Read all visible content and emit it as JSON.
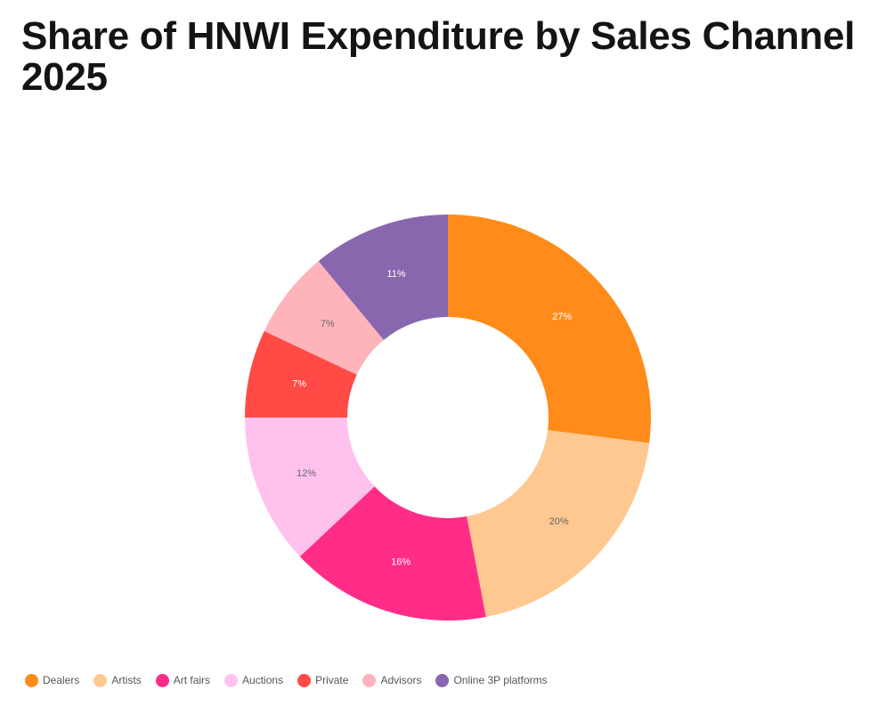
{
  "title": "Share of HNWI Expenditure by Sales Channel 2025",
  "chart_data": {
    "type": "pie",
    "title": "Share of HNWI Expenditure by Sales Channel 2025",
    "donut": true,
    "legend_position": "bottom-left",
    "categories": [
      "Dealers",
      "Artists",
      "Art fairs",
      "Auctions",
      "Private",
      "Advisors",
      "Online 3P platforms"
    ],
    "values": [
      27,
      20,
      16,
      12,
      7,
      7,
      11
    ],
    "labels": [
      "27%",
      "20%",
      "16%",
      "12%",
      "7%",
      "7%",
      "11%"
    ],
    "colors": [
      "#ff8c1a",
      "#ffc891",
      "#ff2d87",
      "#ffc2ee",
      "#ff4a45",
      "#ffb3bb",
      "#8967ae"
    ],
    "label_colors": [
      "#ffffff",
      "#666666",
      "#ffffff",
      "#666666",
      "#ffffff",
      "#666666",
      "#ffffff"
    ]
  }
}
